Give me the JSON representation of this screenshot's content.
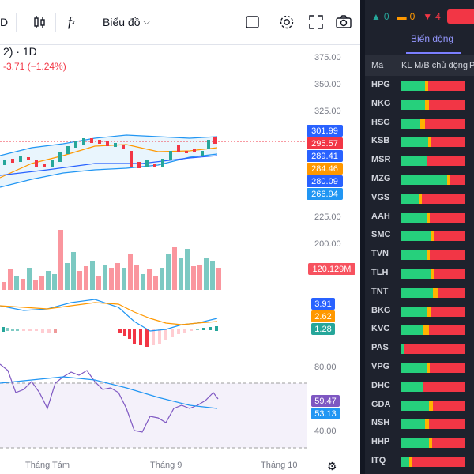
{
  "toolbar": {
    "symbol_fragment": "D",
    "chart_type_label": "Biểu đồ"
  },
  "legend": {
    "title": "2) · 1D",
    "change": "-3.71 (−1.24%)"
  },
  "price_axis": {
    "ticks": [
      "375.00",
      "350.00",
      "325.00",
      "250.00",
      "225.00",
      "200.00"
    ],
    "tags": [
      {
        "value": "301.99",
        "color": "#2962ff"
      },
      {
        "value": "295.57",
        "color": "#f23645"
      },
      {
        "value": "289.41",
        "color": "#2962ff"
      },
      {
        "value": "284.46",
        "color": "#ff9800"
      },
      {
        "value": "280.09",
        "color": "#2962ff"
      },
      {
        "value": "266.94",
        "color": "#2196f3"
      }
    ],
    "volume_tag": {
      "value": "120.129M",
      "color": "#f7525f"
    },
    "macd_tags": [
      {
        "value": "3.91",
        "color": "#2962ff"
      },
      {
        "value": "2.62",
        "color": "#ff9800"
      },
      {
        "value": "1.28",
        "color": "#26a69a"
      }
    ],
    "rsi_ticks": [
      "80.00",
      "40.00"
    ],
    "rsi_tags": [
      {
        "value": "59.47",
        "color": "#7e57c2"
      },
      {
        "value": "53.13",
        "color": "#2196f3"
      }
    ]
  },
  "time_axis": [
    "Tháng Tám",
    "Tháng 9",
    "Tháng 10"
  ],
  "right_panel": {
    "counts": {
      "up": "0",
      "flat": "0",
      "down": "4"
    },
    "tab_label": "Biến động",
    "col_symbol": "Mã",
    "col_flow": "KL M/B chủ động",
    "col_extra": "P",
    "rows": [
      {
        "sym": "HPG",
        "g": 38,
        "o": 5,
        "r": 57
      },
      {
        "sym": "NKG",
        "g": 38,
        "o": 6,
        "r": 56
      },
      {
        "sym": "HSG",
        "g": 30,
        "o": 8,
        "r": 62
      },
      {
        "sym": "KSB",
        "g": 42,
        "o": 5,
        "r": 53
      },
      {
        "sym": "MSR",
        "g": 40,
        "o": 0,
        "r": 60
      },
      {
        "sym": "MZG",
        "g": 72,
        "o": 5,
        "r": 23
      },
      {
        "sym": "VGS",
        "g": 28,
        "o": 4,
        "r": 68
      },
      {
        "sym": "AAH",
        "g": 40,
        "o": 5,
        "r": 55
      },
      {
        "sym": "SMC",
        "g": 48,
        "o": 5,
        "r": 47
      },
      {
        "sym": "TVN",
        "g": 40,
        "o": 5,
        "r": 55
      },
      {
        "sym": "TLH",
        "g": 46,
        "o": 5,
        "r": 49
      },
      {
        "sym": "TNT",
        "g": 50,
        "o": 8,
        "r": 42
      },
      {
        "sym": "BKG",
        "g": 40,
        "o": 8,
        "r": 52
      },
      {
        "sym": "KVC",
        "g": 34,
        "o": 10,
        "r": 56
      },
      {
        "sym": "PAS",
        "g": 4,
        "o": 0,
        "r": 96
      },
      {
        "sym": "VPG",
        "g": 40,
        "o": 5,
        "r": 55
      },
      {
        "sym": "DHC",
        "g": 34,
        "o": 0,
        "r": 66
      },
      {
        "sym": "GDA",
        "g": 44,
        "o": 6,
        "r": 50
      },
      {
        "sym": "NSH",
        "g": 38,
        "o": 6,
        "r": 56
      },
      {
        "sym": "HHP",
        "g": 44,
        "o": 5,
        "r": 51
      },
      {
        "sym": "ITQ",
        "g": 12,
        "o": 6,
        "r": 82
      }
    ]
  }
}
